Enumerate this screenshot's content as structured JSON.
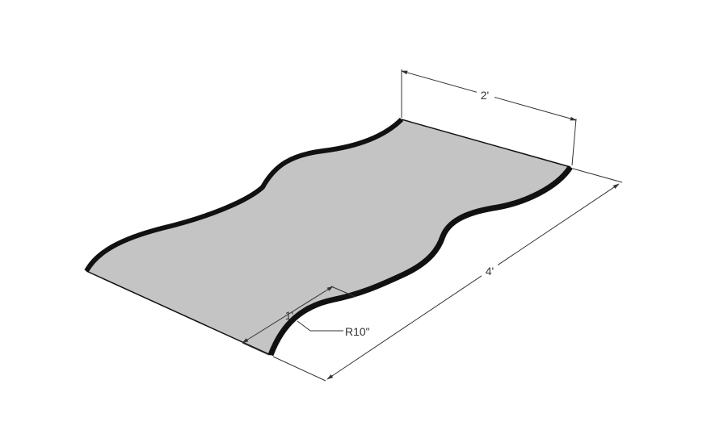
{
  "drawing": {
    "dimensions": {
      "width": "2'",
      "length": "4'",
      "offset": "1'",
      "radius": "R10\""
    },
    "colors": {
      "top_face": "#c4c4c4",
      "edge": "#111111",
      "dimension_line": "#333333",
      "background": "#ffffff"
    }
  }
}
